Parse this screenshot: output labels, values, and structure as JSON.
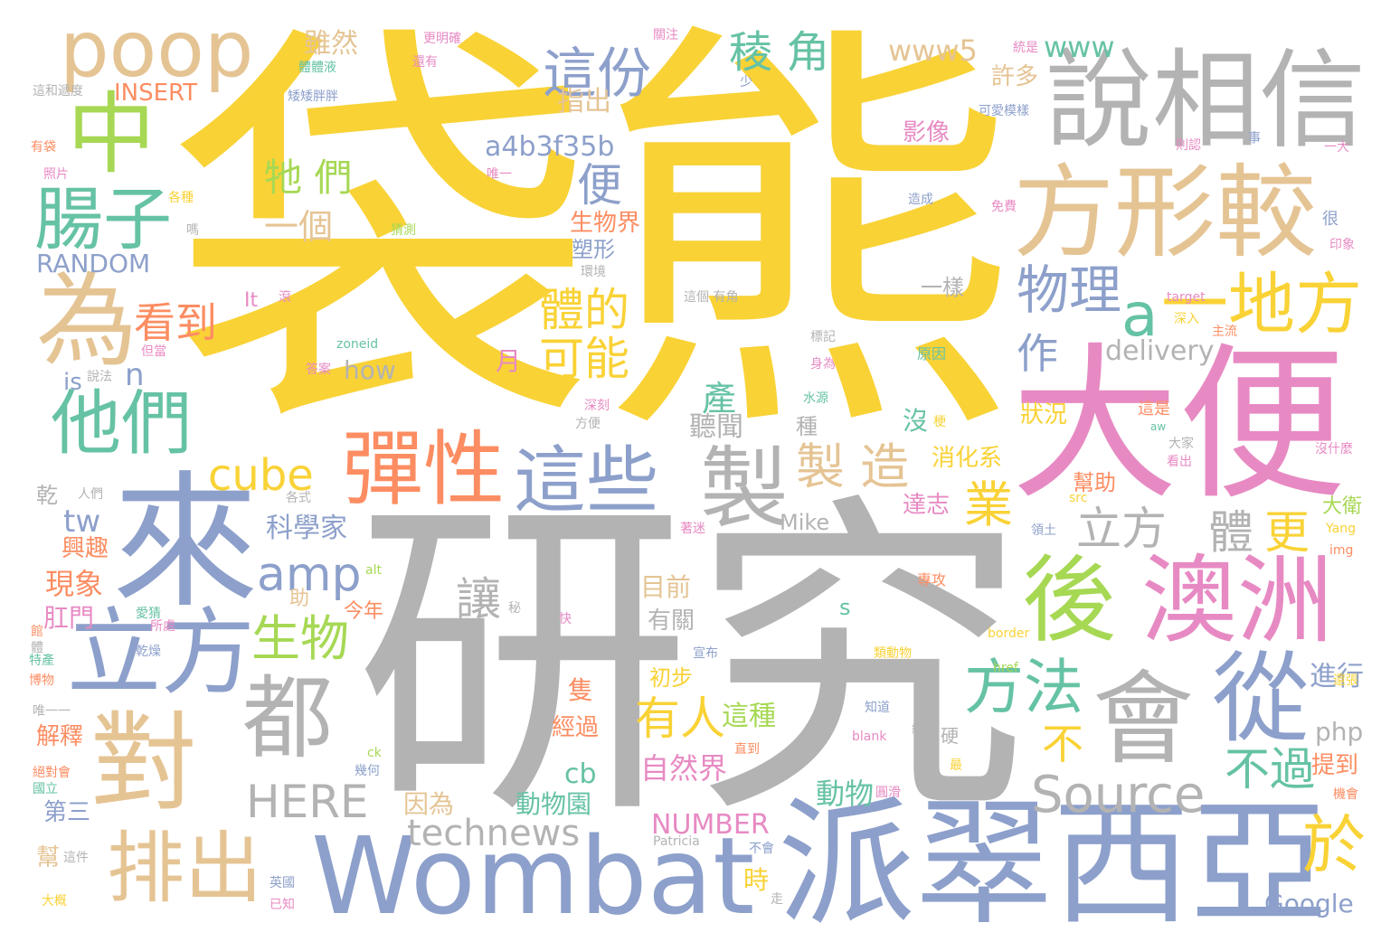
{
  "palette": {
    "yellow": "#f9d236",
    "gray": "#b3b3b3",
    "blue": "#8da0cb",
    "pink": "#e78ac3",
    "tan": "#e5c494",
    "green": "#a6d854",
    "teal": "#66c2a5",
    "orange": "#fc8d62"
  },
  "words": [
    {
      "text": "袋熊",
      "color": "yellow"
    },
    {
      "text": "研究",
      "color": "gray"
    },
    {
      "text": "大便",
      "color": "pink"
    },
    {
      "text": "來",
      "color": "blue"
    },
    {
      "text": "派翠西亞",
      "color": "blue"
    },
    {
      "text": "Wombat",
      "color": "blue"
    },
    {
      "text": "說相信",
      "color": "gray"
    },
    {
      "text": "方形較",
      "color": "tan"
    },
    {
      "text": "對",
      "color": "tan"
    },
    {
      "text": "為",
      "color": "tan"
    },
    {
      "text": "立方",
      "color": "blue"
    },
    {
      "text": "會",
      "color": "gray"
    },
    {
      "text": "從",
      "color": "blue"
    },
    {
      "text": "澳洲",
      "color": "pink"
    },
    {
      "text": "後",
      "color": "green"
    },
    {
      "text": "中",
      "color": "green"
    },
    {
      "text": "poop",
      "color": "tan"
    },
    {
      "text": "腸子",
      "color": "teal"
    },
    {
      "text": "他們",
      "color": "teal"
    },
    {
      "text": "彈性",
      "color": "orange"
    },
    {
      "text": "這些",
      "color": "blue"
    },
    {
      "text": "製",
      "color": "gray"
    },
    {
      "text": "都",
      "color": "gray"
    },
    {
      "text": "排出",
      "color": "tan"
    },
    {
      "text": "一地方",
      "color": "yellow"
    },
    {
      "text": "a",
      "color": "teal"
    },
    {
      "text": "這份",
      "color": "blue"
    },
    {
      "text": "稜 角",
      "color": "teal"
    },
    {
      "text": "www5",
      "color": "tan"
    },
    {
      "text": "www",
      "color": "teal"
    },
    {
      "text": "物理",
      "color": "blue"
    },
    {
      "text": "立方",
      "color": "gray"
    },
    {
      "text": "體",
      "color": "gray"
    },
    {
      "text": "更",
      "color": "yellow"
    },
    {
      "text": "製 造",
      "color": "tan"
    },
    {
      "text": "業",
      "color": "yellow"
    },
    {
      "text": "方法",
      "color": "teal"
    },
    {
      "text": "有人",
      "color": "yellow"
    },
    {
      "text": "不",
      "color": "yellow"
    },
    {
      "text": "不過",
      "color": "teal"
    },
    {
      "text": "Source",
      "color": "gray"
    },
    {
      "text": "於",
      "color": "yellow"
    },
    {
      "text": "cube",
      "color": "yellow"
    },
    {
      "text": "amp",
      "color": "blue"
    },
    {
      "text": "生物",
      "color": "green"
    },
    {
      "text": "HERE",
      "color": "gray"
    },
    {
      "text": "technews",
      "color": "gray"
    },
    {
      "text": "看到",
      "color": "orange"
    },
    {
      "text": "體的",
      "color": "yellow"
    },
    {
      "text": "可能",
      "color": "yellow"
    },
    {
      "text": "便",
      "color": "blue"
    },
    {
      "text": "牠 們",
      "color": "green"
    },
    {
      "text": "一個",
      "color": "tan"
    },
    {
      "text": "a4b3f35b",
      "color": "blue"
    },
    {
      "text": "指出",
      "color": "tan"
    },
    {
      "text": "雖然",
      "color": "tan"
    },
    {
      "text": "INSERT",
      "color": "orange"
    },
    {
      "text": "RANDOM",
      "color": "blue"
    },
    {
      "text": "作",
      "color": "blue"
    },
    {
      "text": "產",
      "color": "teal"
    },
    {
      "text": "聽聞",
      "color": "gray"
    },
    {
      "text": "讓",
      "color": "gray"
    },
    {
      "text": "tw",
      "color": "blue"
    },
    {
      "text": "科學家",
      "color": "blue"
    },
    {
      "text": "現象",
      "color": "orange"
    },
    {
      "text": "肛門",
      "color": "pink"
    },
    {
      "text": "興趣",
      "color": "orange"
    },
    {
      "text": "解釋",
      "color": "orange"
    },
    {
      "text": "第三",
      "color": "blue"
    },
    {
      "text": "n",
      "color": "blue"
    },
    {
      "text": "is",
      "color": "blue"
    },
    {
      "text": "how",
      "color": "gray"
    },
    {
      "text": "delivery",
      "color": "gray"
    },
    {
      "text": "狀況",
      "color": "yellow"
    },
    {
      "text": "消化系",
      "color": "yellow"
    },
    {
      "text": "達志",
      "color": "pink"
    },
    {
      "text": "大衛",
      "color": "green"
    },
    {
      "text": "幫助",
      "color": "orange"
    },
    {
      "text": "進行",
      "color": "blue"
    },
    {
      "text": "php",
      "color": "gray"
    },
    {
      "text": "提到",
      "color": "orange"
    },
    {
      "text": "Google",
      "color": "blue"
    },
    {
      "text": "NUMBER",
      "color": "pink"
    },
    {
      "text": "自然界",
      "color": "pink"
    },
    {
      "text": "這種",
      "color": "green"
    },
    {
      "text": "動物",
      "color": "teal"
    },
    {
      "text": "動物園",
      "color": "teal"
    },
    {
      "text": "因為",
      "color": "tan"
    },
    {
      "text": "cb",
      "color": "teal"
    },
    {
      "text": "目前",
      "color": "tan"
    },
    {
      "text": "有關",
      "color": "gray"
    },
    {
      "text": "初步",
      "color": "yellow"
    },
    {
      "text": "經過",
      "color": "orange"
    },
    {
      "text": "隻",
      "color": "orange"
    },
    {
      "text": "月",
      "color": "pink"
    },
    {
      "text": "生物界",
      "color": "orange"
    },
    {
      "text": "塑形",
      "color": "blue"
    },
    {
      "text": "影像",
      "color": "pink"
    },
    {
      "text": "許多",
      "color": "tan"
    },
    {
      "text": "一樣",
      "color": "gray"
    },
    {
      "text": "沒",
      "color": "teal"
    },
    {
      "text": "Mike",
      "color": "gray"
    },
    {
      "text": "s",
      "color": "teal"
    },
    {
      "text": "助",
      "color": "tan"
    },
    {
      "text": "時",
      "color": "yellow"
    },
    {
      "text": "乾",
      "color": "gray"
    },
    {
      "text": "種",
      "color": "gray"
    },
    {
      "text": "今年",
      "color": "orange"
    },
    {
      "text": "It",
      "color": "pink"
    },
    {
      "text": "更明確",
      "color": "pink"
    },
    {
      "text": "還有",
      "color": "pink"
    },
    {
      "text": "關注",
      "color": "pink"
    },
    {
      "text": "統是",
      "color": "pink"
    },
    {
      "text": "體體液",
      "color": "teal"
    },
    {
      "text": "矮矮胖胖",
      "color": "blue"
    },
    {
      "text": "這和遞度",
      "color": "gray"
    },
    {
      "text": "有袋",
      "color": "orange"
    },
    {
      "text": "照片",
      "color": "pink"
    },
    {
      "text": "各種",
      "color": "yellow"
    },
    {
      "text": "嗎",
      "color": "gray"
    },
    {
      "text": "猜測",
      "color": "green"
    },
    {
      "text": "唯一",
      "color": "pink"
    },
    {
      "text": "少",
      "color": "blue"
    },
    {
      "text": "可愛模樣",
      "color": "blue"
    },
    {
      "text": "事",
      "color": "blue"
    },
    {
      "text": "則認",
      "color": "pink"
    },
    {
      "text": "一大",
      "color": "pink"
    },
    {
      "text": "造成",
      "color": "blue"
    },
    {
      "text": "很",
      "color": "blue"
    },
    {
      "text": "印象",
      "color": "pink"
    },
    {
      "text": "免費",
      "color": "pink"
    },
    {
      "text": "這個 有角",
      "color": "gray"
    },
    {
      "text": "target",
      "color": "pink"
    },
    {
      "text": "深入",
      "color": "yellow"
    },
    {
      "text": "主流",
      "color": "orange"
    },
    {
      "text": "標記",
      "color": "gray"
    },
    {
      "text": "原因",
      "color": "teal"
    },
    {
      "text": "身為",
      "color": "pink"
    },
    {
      "text": "水源",
      "color": "teal"
    },
    {
      "text": "梗",
      "color": "yellow"
    },
    {
      "text": "這是",
      "color": "orange"
    },
    {
      "text": "aw",
      "color": "teal"
    },
    {
      "text": "大家",
      "color": "gray"
    },
    {
      "text": "沒什麼",
      "color": "pink"
    },
    {
      "text": "看出",
      "color": "pink"
    },
    {
      "text": "src",
      "color": "yellow"
    },
    {
      "text": "領土",
      "color": "blue"
    },
    {
      "text": "Yang",
      "color": "yellow"
    },
    {
      "text": "img",
      "color": "orange"
    },
    {
      "text": "專攻",
      "color": "orange"
    },
    {
      "text": "border",
      "color": "yellow"
    },
    {
      "text": "類動物",
      "color": "yellow"
    },
    {
      "text": "宣布",
      "color": "blue"
    },
    {
      "text": "href",
      "color": "green"
    },
    {
      "text": "還張",
      "color": "yellow"
    },
    {
      "text": "知道",
      "color": "blue"
    },
    {
      "text": "blank",
      "color": "pink"
    },
    {
      "text": "總是",
      "color": "gray"
    },
    {
      "text": "硬",
      "color": "gray"
    },
    {
      "text": "最",
      "color": "yellow"
    },
    {
      "text": "直到",
      "color": "orange"
    },
    {
      "text": "圓滑",
      "color": "pink"
    },
    {
      "text": "機會",
      "color": "orange"
    },
    {
      "text": "Patricia",
      "color": "gray"
    },
    {
      "text": "不會",
      "color": "blue"
    },
    {
      "text": "英國",
      "color": "blue"
    },
    {
      "text": "已知",
      "color": "pink"
    },
    {
      "text": "走",
      "color": "gray"
    },
    {
      "text": "大概",
      "color": "yellow"
    },
    {
      "text": "這件",
      "color": "gray"
    },
    {
      "text": "幫",
      "color": "tan"
    },
    {
      "text": "國立",
      "color": "teal"
    },
    {
      "text": "絕對會",
      "color": "orange"
    },
    {
      "text": "幾何",
      "color": "blue"
    },
    {
      "text": "ck",
      "color": "green"
    },
    {
      "text": "唯一一",
      "color": "gray"
    },
    {
      "text": "博物",
      "color": "orange"
    },
    {
      "text": "特產",
      "color": "teal"
    },
    {
      "text": "館",
      "color": "orange"
    },
    {
      "text": "乾燥",
      "color": "blue"
    },
    {
      "text": "所處",
      "color": "pink"
    },
    {
      "text": "愛猜",
      "color": "teal"
    },
    {
      "text": "秘",
      "color": "gray"
    },
    {
      "text": "alt",
      "color": "green"
    },
    {
      "text": "人們",
      "color": "gray"
    },
    {
      "text": "各式",
      "color": "gray"
    },
    {
      "text": "著迷",
      "color": "pink"
    },
    {
      "text": "方便",
      "color": "gray"
    },
    {
      "text": "深刻",
      "color": "pink"
    },
    {
      "text": "答案",
      "color": "pink"
    },
    {
      "text": "說法",
      "color": "gray"
    },
    {
      "text": "zoneid",
      "color": "teal"
    },
    {
      "text": "但當",
      "color": "pink"
    },
    {
      "text": "滾",
      "color": "pink"
    },
    {
      "text": "環境",
      "color": "gray"
    },
    {
      "text": "體",
      "color": "gray"
    },
    {
      "text": "快",
      "color": "pink"
    }
  ]
}
